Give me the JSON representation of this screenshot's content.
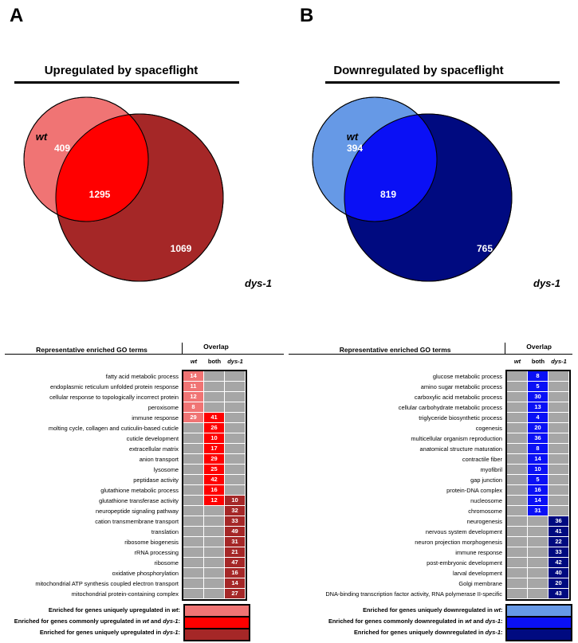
{
  "panels": [
    {
      "letter": "A",
      "title": "Upregulated by spaceflight",
      "venn": {
        "set1_label": "wt",
        "set2_label": "dys-1",
        "only1": "409",
        "both": "1295",
        "only2": "1069",
        "color_only1": "#f07474",
        "color_both": "#ff0000",
        "color_only2": "#a52727"
      },
      "table": {
        "terms_header": "Representative enriched GO terms",
        "overlap_header": "Overlap",
        "columns": [
          "wt",
          "both",
          "dys-1"
        ],
        "rows": [
          {
            "term": "fatty acid metabolic process",
            "values": [
              "14",
              "",
              ""
            ]
          },
          {
            "term": "endoplasmic reticulum unfolded protein response",
            "values": [
              "11",
              "",
              ""
            ]
          },
          {
            "term": "cellular response to topologically incorrect protein",
            "values": [
              "12",
              "",
              ""
            ]
          },
          {
            "term": "peroxisome",
            "values": [
              "8",
              "",
              ""
            ]
          },
          {
            "term": "immune response",
            "values": [
              "29",
              "41",
              ""
            ]
          },
          {
            "term": "molting cycle, collagen and cuticulin-based cuticle",
            "values": [
              "",
              "26",
              ""
            ]
          },
          {
            "term": "cuticle development",
            "values": [
              "",
              "10",
              ""
            ]
          },
          {
            "term": "extracellular matrix",
            "values": [
              "",
              "17",
              ""
            ]
          },
          {
            "term": "anion transport",
            "values": [
              "",
              "29",
              ""
            ]
          },
          {
            "term": "lysosome",
            "values": [
              "",
              "25",
              ""
            ]
          },
          {
            "term": "peptidase activity",
            "values": [
              "",
              "42",
              ""
            ]
          },
          {
            "term": "glutathione metabolic process",
            "values": [
              "",
              "16",
              ""
            ]
          },
          {
            "term": "glutathione transferase activity",
            "values": [
              "",
              "12",
              "10"
            ]
          },
          {
            "term": "neuropeptide signaling pathway",
            "values": [
              "",
              "",
              "32"
            ]
          },
          {
            "term": "cation transmembrane transport",
            "values": [
              "",
              "",
              "33"
            ]
          },
          {
            "term": "translation",
            "values": [
              "",
              "",
              "49"
            ]
          },
          {
            "term": "ribosome biogenesis",
            "values": [
              "",
              "",
              "31"
            ]
          },
          {
            "term": "rRNA processing",
            "values": [
              "",
              "",
              "21"
            ]
          },
          {
            "term": "ribosome",
            "values": [
              "",
              "",
              "47"
            ]
          },
          {
            "term": "oxidative phosphorylation",
            "values": [
              "",
              "",
              "16"
            ]
          },
          {
            "term": "mitochondrial ATP synthesis coupled electron transport",
            "values": [
              "",
              "",
              "14"
            ]
          },
          {
            "term": "mitochondrial protein-containing complex",
            "values": [
              "",
              "",
              "27"
            ]
          }
        ]
      },
      "legend": [
        {
          "parts": [
            "Enriched for genes uniquely upregulated in ",
            "wt",
            ":"
          ],
          "color": "#f07474"
        },
        {
          "parts": [
            "Enriched for genes commonly upregulated in ",
            "wt",
            " and ",
            "dys-1",
            ":"
          ],
          "color": "#ff0000"
        },
        {
          "parts": [
            "Enriched for genes uniquely upregulated in ",
            "dys-1",
            ":"
          ],
          "color": "#a52727"
        }
      ]
    },
    {
      "letter": "B",
      "title": "Downregulated by spaceflight",
      "venn": {
        "set1_label": "wt",
        "set2_label": "dys-1",
        "only1": "394",
        "both": "819",
        "only2": "765",
        "color_only1": "#6699e6",
        "color_both": "#0a10f5",
        "color_only2": "#000a80"
      },
      "table": {
        "terms_header": "Representative enriched GO terms",
        "overlap_header": "Overlap",
        "columns": [
          "wt",
          "both",
          "dys-1"
        ],
        "rows": [
          {
            "term": "glucose metabolic process",
            "values": [
              "",
              "8",
              ""
            ]
          },
          {
            "term": "amino sugar metabolic process",
            "values": [
              "",
              "5",
              ""
            ]
          },
          {
            "term": "carboxylic acid metabolic process",
            "values": [
              "",
              "30",
              ""
            ]
          },
          {
            "term": "cellular carbohydrate metabolic process",
            "values": [
              "",
              "13",
              ""
            ]
          },
          {
            "term": "triglyceride biosynthetic process",
            "values": [
              "",
              "4",
              ""
            ]
          },
          {
            "term": "cogenesis",
            "values": [
              "",
              "20",
              ""
            ]
          },
          {
            "term": "multicellular organism reproduction",
            "values": [
              "",
              "36",
              ""
            ]
          },
          {
            "term": "anatomical structure maturation",
            "values": [
              "",
              "8",
              ""
            ]
          },
          {
            "term": "contractile fiber",
            "values": [
              "",
              "14",
              ""
            ]
          },
          {
            "term": "myofibril",
            "values": [
              "",
              "10",
              ""
            ]
          },
          {
            "term": "gap junction",
            "values": [
              "",
              "5",
              ""
            ]
          },
          {
            "term": "protein-DNA complex",
            "values": [
              "",
              "16",
              ""
            ]
          },
          {
            "term": "nucleosome",
            "values": [
              "",
              "14",
              ""
            ]
          },
          {
            "term": "chromosome",
            "values": [
              "",
              "31",
              ""
            ]
          },
          {
            "term": "neurogenesis",
            "values": [
              "",
              "",
              "36"
            ]
          },
          {
            "term": "nervous system development",
            "values": [
              "",
              "",
              "41"
            ]
          },
          {
            "term": "neuron projection morphogenesis",
            "values": [
              "",
              "",
              "22"
            ]
          },
          {
            "term": "immune response",
            "values": [
              "",
              "",
              "33"
            ]
          },
          {
            "term": "post-embryonic development",
            "values": [
              "",
              "",
              "42"
            ]
          },
          {
            "term": "larval development",
            "values": [
              "",
              "",
              "40"
            ]
          },
          {
            "term": "Golgi membrane",
            "values": [
              "",
              "",
              "20"
            ]
          },
          {
            "term": "DNA-binding transcription factor activity, RNA polymerase II-specific",
            "values": [
              "",
              "",
              "43"
            ]
          }
        ]
      },
      "legend": [
        {
          "parts": [
            "Enriched for genes uniquely downregulated in ",
            "wt",
            ":"
          ],
          "color": "#6699e6"
        },
        {
          "parts": [
            "Enriched for genes commonly downregulated in ",
            "wt",
            " and ",
            "dys-1",
            ":"
          ],
          "color": "#0a10f5"
        },
        {
          "parts": [
            "Enriched for genes uniquely downregulated in ",
            "dys-1",
            ":"
          ],
          "color": "#000a80"
        }
      ]
    }
  ]
}
